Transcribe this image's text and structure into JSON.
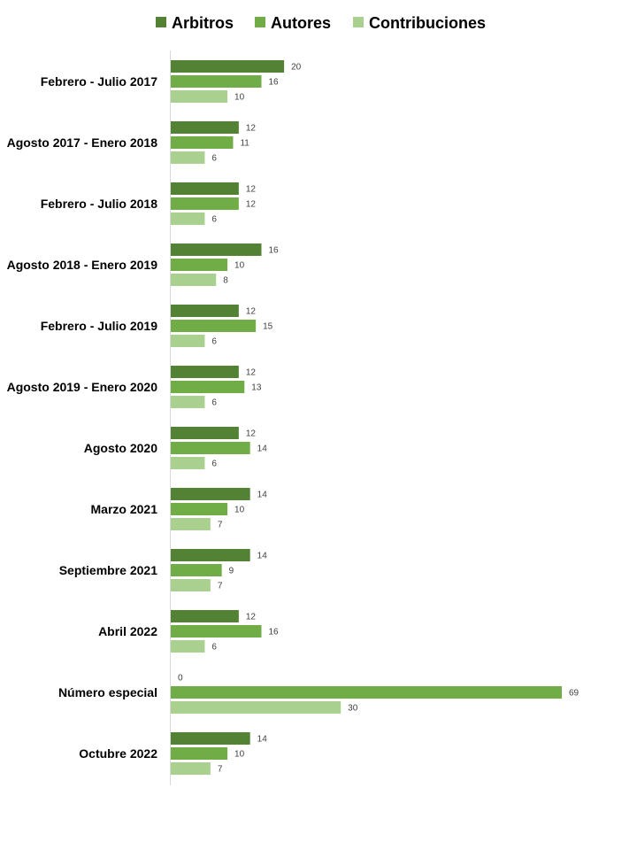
{
  "chart_data": {
    "type": "bar",
    "orientation": "horizontal",
    "categories": [
      "Febrero - Julio 2017",
      "Agosto 2017 - Enero 2018",
      "Febrero - Julio 2018",
      "Agosto 2018 - Enero 2019",
      "Febrero - Julio 2019",
      "Agosto 2019 - Enero 2020",
      "Agosto 2020",
      "Marzo 2021",
      "Septiembre 2021",
      "Abril 2022",
      "Número especial",
      "Octubre 2022"
    ],
    "series": [
      {
        "name": "Arbitros",
        "color": "#548235",
        "values": [
          20,
          12,
          12,
          16,
          12,
          12,
          12,
          14,
          14,
          12,
          0,
          14
        ]
      },
      {
        "name": "Autores",
        "color": "#70AD47",
        "values": [
          16,
          11,
          12,
          10,
          15,
          13,
          14,
          10,
          9,
          16,
          69,
          10
        ]
      },
      {
        "name": "Contribuciones",
        "color": "#A9D08E",
        "values": [
          10,
          6,
          6,
          8,
          6,
          6,
          6,
          7,
          7,
          6,
          30,
          7
        ]
      }
    ],
    "title": "",
    "xlabel": "",
    "ylabel": "",
    "xlim": [
      0,
      69
    ],
    "data_labels": true,
    "legend_position": "top",
    "grid": false
  }
}
